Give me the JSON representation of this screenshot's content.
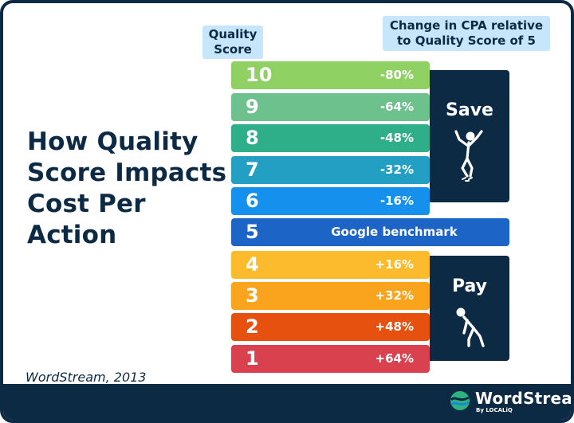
{
  "title": "How Quality Score Impacts Cost Per Action",
  "source": "WordStream, 2013",
  "header_quality_score": "Quality Score",
  "header_cpa": "Change in CPA relative to Quality Score of 5",
  "rows": [
    {
      "score": "10",
      "change": "-80%",
      "color": "#8fd163"
    },
    {
      "score": "9",
      "change": "-64%",
      "color": "#6cc18d"
    },
    {
      "score": "8",
      "change": "-48%",
      "color": "#2fae8a"
    },
    {
      "score": "7",
      "change": "-32%",
      "color": "#249fc4"
    },
    {
      "score": "6",
      "change": "-16%",
      "color": "#1590ec"
    },
    {
      "score": "5",
      "change": "Google benchmark",
      "color": "#1c64c6"
    },
    {
      "score": "4",
      "change": "+16%",
      "color": "#fbbb2c"
    },
    {
      "score": "3",
      "change": "+32%",
      "color": "#f9a41c"
    },
    {
      "score": "2",
      "change": "+48%",
      "color": "#e6510f"
    },
    {
      "score": "1",
      "change": "+64%",
      "color": "#d8414d"
    }
  ],
  "save_label": "Save",
  "pay_label": "Pay",
  "icons": {
    "save": "jumping-person-icon",
    "pay": "weighed-down-person-icon",
    "logo": "wordstream-logo-icon"
  },
  "logo": {
    "name": "WordStream",
    "sub": "By LOCALiQ"
  },
  "colors": {
    "navy": "#0d2a44",
    "header_bg": "#c6e6fb"
  }
}
